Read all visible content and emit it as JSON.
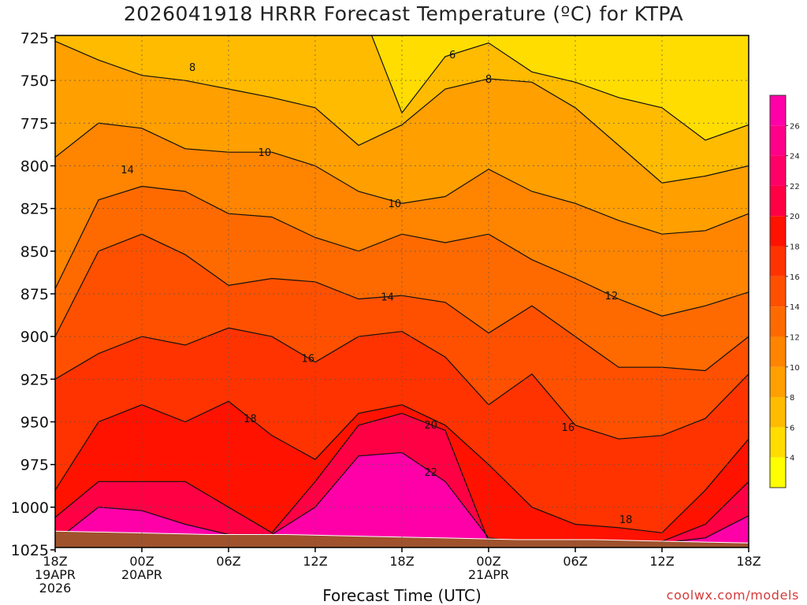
{
  "title": "2026041918 HRRR Forecast Temperature (ºC) for KTPA",
  "xlabel": "Forecast Time (UTC)",
  "credit": "coolwx.com/models",
  "chart_data": {
    "type": "heatmap",
    "title": "2026041918 HRRR Forecast Temperature (ºC) for KTPA",
    "xlabel": "Forecast Time (UTC)",
    "ylabel": "",
    "x_range_hours": [
      0,
      48
    ],
    "y_range_hpa": [
      725,
      1025
    ],
    "y_axis_inverted": true,
    "grid": true,
    "x_ticks": [
      {
        "hour": 0,
        "lines": [
          "18Z",
          "19APR",
          "2026"
        ]
      },
      {
        "hour": 6,
        "lines": [
          "00Z",
          "20APR"
        ]
      },
      {
        "hour": 12,
        "lines": [
          "06Z"
        ]
      },
      {
        "hour": 18,
        "lines": [
          "12Z"
        ]
      },
      {
        "hour": 24,
        "lines": [
          "18Z"
        ]
      },
      {
        "hour": 30,
        "lines": [
          "00Z",
          "21APR"
        ]
      },
      {
        "hour": 36,
        "lines": [
          "06Z"
        ]
      },
      {
        "hour": 42,
        "lines": [
          "12Z"
        ]
      },
      {
        "hour": 48,
        "lines": [
          "18Z"
        ]
      }
    ],
    "y_ticks": [
      725,
      750,
      775,
      800,
      825,
      850,
      875,
      900,
      925,
      950,
      975,
      1000,
      1025
    ],
    "colorbar": {
      "ticks": [
        4,
        6,
        8,
        10,
        12,
        14,
        16,
        18,
        20,
        22,
        24,
        26
      ],
      "bands": [
        {
          "min": 2,
          "max": 4,
          "color": "#ffff00"
        },
        {
          "min": 4,
          "max": 6,
          "color": "#ffdd00"
        },
        {
          "min": 6,
          "max": 8,
          "color": "#ffbb00"
        },
        {
          "min": 8,
          "max": 10,
          "color": "#ff9f00"
        },
        {
          "min": 10,
          "max": 12,
          "color": "#ff8400"
        },
        {
          "min": 12,
          "max": 14,
          "color": "#ff6a00"
        },
        {
          "min": 14,
          "max": 16,
          "color": "#ff5000"
        },
        {
          "min": 16,
          "max": 18,
          "color": "#ff3300"
        },
        {
          "min": 18,
          "max": 20,
          "color": "#ff1200"
        },
        {
          "min": 20,
          "max": 22,
          "color": "#ff0044"
        },
        {
          "min": 22,
          "max": 24,
          "color": "#ff0066"
        },
        {
          "min": 24,
          "max": 26,
          "color": "#ff0088"
        },
        {
          "min": 26,
          "max": 28,
          "color": "#ff00a8"
        }
      ]
    },
    "ground_color": "#a0522d",
    "ground_hpa": [
      1014,
      1015,
      1016,
      1016,
      1017,
      1018,
      1019,
      1019,
      1020,
      1021
    ],
    "x_hours": [
      0,
      3,
      6,
      9,
      12,
      15,
      18,
      21,
      24,
      27,
      30,
      33,
      36,
      39,
      42,
      45,
      48
    ],
    "contours": [
      {
        "level": 6,
        "pressure": [
          704,
          704,
          704,
          704,
          704,
          704,
          704,
          704,
          769,
          736,
          728,
          745,
          751,
          760,
          766,
          785,
          776
        ],
        "label": {
          "hour": 27.5,
          "text": "6"
        }
      },
      {
        "level": 8,
        "pressure": [
          727,
          738,
          747,
          750,
          755,
          760,
          766,
          788,
          776,
          755,
          749,
          751,
          766,
          788,
          810,
          806,
          800
        ],
        "label": {
          "hour": 30,
          "text": "8"
        }
      },
      {
        "level": 10,
        "pressure": [
          795,
          775,
          778,
          790,
          792,
          792,
          800,
          815,
          822,
          818,
          802,
          815,
          822,
          832,
          840,
          838,
          828
        ],
        "label": {
          "hour": 14.5,
          "text": "10"
        }
      },
      {
        "level": 12,
        "pressure": [
          872,
          820,
          812,
          815,
          828,
          830,
          842,
          850,
          840,
          845,
          840,
          855,
          866,
          878,
          888,
          882,
          874
        ],
        "label": {
          "hour": 38.5,
          "text": "12"
        }
      },
      {
        "level": 14,
        "pressure": [
          900,
          850,
          840,
          852,
          870,
          866,
          868,
          878,
          876,
          880,
          898,
          882,
          900,
          918,
          918,
          920,
          900
        ],
        "label": {
          "hour": 23,
          "text": "14"
        }
      },
      {
        "level": 16,
        "pressure": [
          925,
          910,
          900,
          905,
          895,
          900,
          915,
          900,
          897,
          912,
          940,
          922,
          952,
          960,
          958,
          948,
          922
        ],
        "label": {
          "hour": 17.5,
          "text": "16"
        }
      },
      {
        "level": 18,
        "pressure": [
          990,
          950,
          940,
          950,
          938,
          958,
          972,
          945,
          940,
          952,
          975,
          1000,
          1010,
          1012,
          1015,
          990,
          960
        ],
        "label": {
          "hour": 13.5,
          "text": "18"
        }
      },
      {
        "level": 20,
        "pressure": [
          1006,
          985,
          985,
          985,
          1000,
          1015,
          985,
          952,
          945,
          955,
          1020,
          1021,
          1021,
          1021,
          1020,
          1010,
          985
        ],
        "label": {
          "hour": 26,
          "text": "20"
        }
      },
      {
        "level": 22,
        "pressure": [
          1020,
          1000,
          1002,
          1010,
          1016,
          1016,
          1000,
          970,
          968,
          985,
          1018,
          1021,
          1021,
          1021,
          1021,
          1018,
          1005
        ],
        "label": {
          "hour": 26,
          "text": "22"
        }
      }
    ],
    "extra_labels": [
      {
        "hour": 9.5,
        "pressure": 742,
        "text": "8"
      },
      {
        "hour": 23.5,
        "pressure": 822,
        "text": "10"
      },
      {
        "hour": 5,
        "pressure": 802,
        "text": "14"
      },
      {
        "hour": 35.5,
        "pressure": 953,
        "text": "16"
      },
      {
        "hour": 39.5,
        "pressure": 1007,
        "text": "18"
      }
    ]
  }
}
